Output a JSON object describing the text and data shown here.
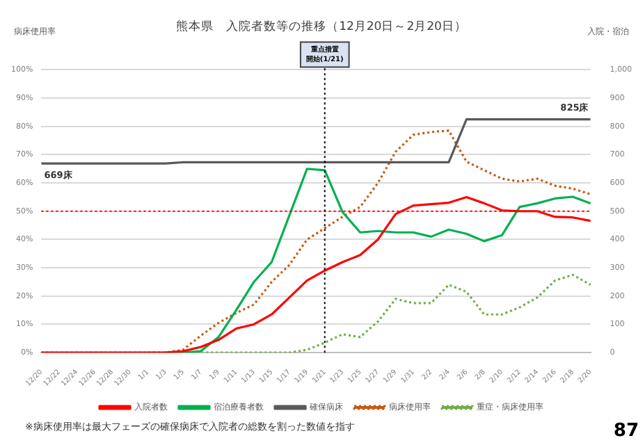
{
  "chart_data": {
    "type": "line",
    "title": "熊本県　入院者数等の推移（12月20日～2月20日）",
    "ylabel": "病床使用率",
    "y2label": "入院・宿泊",
    "categories": [
      "12/20",
      "12/22",
      "12/24",
      "12/26",
      "12/28",
      "12/30",
      "1/1",
      "1/3",
      "1/5",
      "1/7",
      "1/9",
      "1/11",
      "1/13",
      "1/15",
      "1/17",
      "1/19",
      "1/21",
      "1/23",
      "1/25",
      "1/27",
      "1/29",
      "1/31",
      "2/2",
      "2/4",
      "2/6",
      "2/8",
      "2/10",
      "2/12",
      "2/14",
      "2/16",
      "2/18",
      "2/20"
    ],
    "series": [
      {
        "name": "入院者数",
        "color": "#ff0000",
        "axis": "y2",
        "line_style": "solid",
        "values": [
          0,
          0,
          0,
          0,
          0,
          0,
          0,
          0,
          5,
          20,
          45,
          85,
          100,
          135,
          195,
          255,
          290,
          320,
          345,
          400,
          490,
          520,
          525,
          530,
          550,
          528,
          503,
          500,
          500,
          480,
          478,
          466
        ]
      },
      {
        "name": "宿泊療養者数",
        "color": "#00b050",
        "axis": "y2",
        "line_style": "solid",
        "values": [
          null,
          null,
          null,
          null,
          null,
          null,
          null,
          0,
          0,
          5,
          55,
          150,
          250,
          320,
          485,
          650,
          645,
          497,
          425,
          430,
          425,
          425,
          410,
          435,
          420,
          394,
          415,
          515,
          528,
          545,
          551,
          528
        ]
      },
      {
        "name": "確保病床",
        "color": "#595959",
        "axis": "y2",
        "line_style": "solid",
        "values": [
          669,
          669,
          669,
          669,
          669,
          669,
          669,
          669,
          673,
          673,
          673,
          673,
          673,
          673,
          673,
          673,
          673,
          673,
          673,
          673,
          673,
          673,
          673,
          673,
          825,
          825,
          825,
          825,
          825,
          825,
          825,
          825
        ]
      },
      {
        "name": "病床使用率",
        "color": "#c55a11",
        "axis": "y",
        "line_style": "dotted",
        "values": [
          0,
          0,
          0,
          0,
          0,
          0,
          0,
          0,
          1,
          6,
          10.5,
          14,
          17,
          25,
          31,
          40,
          44,
          48,
          51.5,
          60,
          71,
          77,
          78,
          78.5,
          67.5,
          64.5,
          61.5,
          60.5,
          61.5,
          59,
          58,
          56
        ]
      },
      {
        "name": "重症・病床使用率",
        "color": "#70ad47",
        "axis": "y",
        "line_style": "dotted",
        "values": [
          null,
          null,
          null,
          null,
          null,
          null,
          0,
          0,
          0,
          0,
          0,
          0,
          0,
          0,
          0,
          1,
          3.5,
          6.5,
          5.5,
          11,
          19,
          17.5,
          17.5,
          24,
          21.5,
          13.5,
          13.5,
          16,
          19.5,
          25.5,
          27.5,
          24
        ]
      }
    ],
    "ylim": [
      0,
      100
    ],
    "yticks": [
      {
        "value": 0,
        "label": "0%"
      },
      {
        "value": 10,
        "label": "10%"
      },
      {
        "value": 20,
        "label": "20%"
      },
      {
        "value": 30,
        "label": "30%"
      },
      {
        "value": 40,
        "label": "40%"
      },
      {
        "value": 50,
        "label": "50%"
      },
      {
        "value": 60,
        "label": "60%"
      },
      {
        "value": 70,
        "label": "70%"
      },
      {
        "value": 80,
        "label": "80%"
      },
      {
        "value": 90,
        "label": "90%"
      },
      {
        "value": 100,
        "label": "100%"
      }
    ],
    "y2lim": [
      0,
      1000
    ],
    "y2ticks": [
      0,
      100,
      200,
      300,
      400,
      500,
      600,
      700,
      800,
      900,
      {
        "value": 1000,
        "label": "1,000"
      }
    ],
    "ref_lines": [
      {
        "axis": "y",
        "value": 50,
        "color": "#ff0000",
        "line_style": "dotted"
      },
      {
        "axis": "x",
        "value": "1/21",
        "label": "重点措置開始(1/21)",
        "color": "#000000",
        "line_style": "dotted"
      }
    ],
    "annotations": [
      "669床",
      "825床",
      "※病床使用率は最大フェーズの確保病床で入院者の総数を割った数値を指す",
      "87"
    ],
    "grid": "y",
    "legend": "bottom",
    "marker": "none"
  }
}
